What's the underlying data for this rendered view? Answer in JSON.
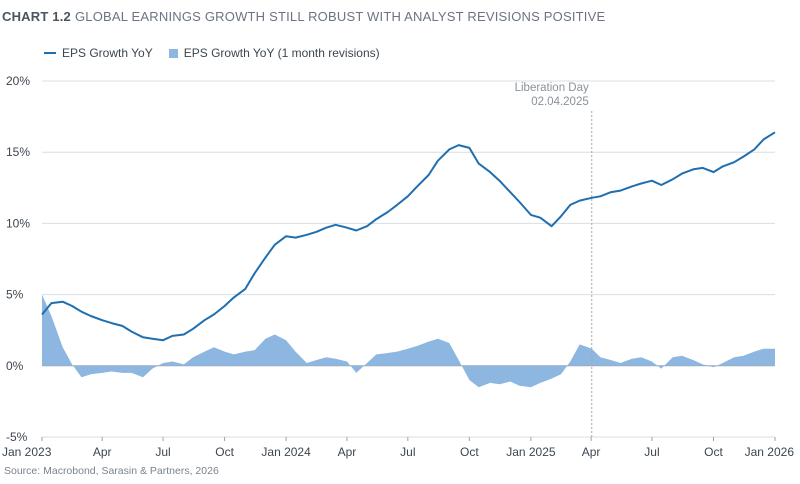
{
  "header": {
    "chart_number": "CHART 1.2",
    "title": "GLOBAL EARNINGS GROWTH STILL ROBUST WITH ANALYST REVISIONS POSITIVE"
  },
  "footer": {
    "source": "Source: Macrobond, Sarasin & Partners, 2026"
  },
  "colors": {
    "line": "#1f6fb0",
    "area": "#8db6e0",
    "grid": "#d9dde2",
    "axis": "#9aa2aa",
    "annotation_line": "#a0a8b0"
  },
  "chart_data": {
    "type": "line",
    "title": "GLOBAL EARNINGS GROWTH STILL ROBUST WITH ANALYST REVISIONS POSITIVE",
    "x_tick_labels": [
      "Jan 2023",
      "Apr",
      "Jul",
      "Oct",
      "Jan 2024",
      "Apr",
      "Jul",
      "Oct",
      "Jan 2025",
      "Apr",
      "Jul",
      "Oct",
      "Jan 2026"
    ],
    "y_tick_labels": [
      "20%",
      "15%",
      "10%",
      "5%",
      "0%",
      "-5%"
    ],
    "y_ticks": [
      20,
      15,
      10,
      5,
      0,
      -5
    ],
    "ylim": [
      -5,
      20
    ],
    "xlim": [
      "2023-01-01",
      "2026-01-01"
    ],
    "grid": "horizontal",
    "legend": "top-left",
    "annotation": {
      "date": "2025-04-02",
      "line1": "Liberation Day",
      "line2": "02.04.2025"
    },
    "series": [
      {
        "name": "EPS Growth YoY",
        "type": "line",
        "points": [
          [
            "2023-01-01",
            3.6
          ],
          [
            "2023-01-15",
            4.4
          ],
          [
            "2023-02-01",
            4.5
          ],
          [
            "2023-02-15",
            4.2
          ],
          [
            "2023-03-01",
            3.8
          ],
          [
            "2023-03-15",
            3.5
          ],
          [
            "2023-04-01",
            3.2
          ],
          [
            "2023-04-15",
            3.0
          ],
          [
            "2023-05-01",
            2.8
          ],
          [
            "2023-05-15",
            2.4
          ],
          [
            "2023-06-01",
            2.0
          ],
          [
            "2023-06-15",
            1.9
          ],
          [
            "2023-07-01",
            1.8
          ],
          [
            "2023-07-15",
            2.1
          ],
          [
            "2023-08-01",
            2.2
          ],
          [
            "2023-08-15",
            2.6
          ],
          [
            "2023-09-01",
            3.2
          ],
          [
            "2023-09-15",
            3.6
          ],
          [
            "2023-10-01",
            4.2
          ],
          [
            "2023-10-15",
            4.8
          ],
          [
            "2023-11-01",
            5.4
          ],
          [
            "2023-11-15",
            6.5
          ],
          [
            "2023-12-01",
            7.6
          ],
          [
            "2023-12-15",
            8.5
          ],
          [
            "2024-01-01",
            9.1
          ],
          [
            "2024-01-15",
            9.0
          ],
          [
            "2024-02-01",
            9.2
          ],
          [
            "2024-02-15",
            9.4
          ],
          [
            "2024-03-01",
            9.7
          ],
          [
            "2024-03-15",
            9.9
          ],
          [
            "2024-04-01",
            9.7
          ],
          [
            "2024-04-15",
            9.5
          ],
          [
            "2024-05-01",
            9.8
          ],
          [
            "2024-05-15",
            10.3
          ],
          [
            "2024-06-01",
            10.8
          ],
          [
            "2024-06-15",
            11.3
          ],
          [
            "2024-07-01",
            11.9
          ],
          [
            "2024-07-15",
            12.6
          ],
          [
            "2024-08-01",
            13.4
          ],
          [
            "2024-08-15",
            14.4
          ],
          [
            "2024-09-01",
            15.2
          ],
          [
            "2024-09-15",
            15.5
          ],
          [
            "2024-10-01",
            15.3
          ],
          [
            "2024-10-15",
            14.2
          ],
          [
            "2024-11-01",
            13.6
          ],
          [
            "2024-11-15",
            13.0
          ],
          [
            "2024-12-01",
            12.2
          ],
          [
            "2024-12-15",
            11.5
          ],
          [
            "2025-01-01",
            10.6
          ],
          [
            "2025-01-15",
            10.4
          ],
          [
            "2025-02-01",
            9.8
          ],
          [
            "2025-02-15",
            10.5
          ],
          [
            "2025-03-01",
            11.3
          ],
          [
            "2025-03-15",
            11.6
          ],
          [
            "2025-04-02",
            11.8
          ],
          [
            "2025-04-15",
            11.9
          ],
          [
            "2025-05-01",
            12.2
          ],
          [
            "2025-05-15",
            12.3
          ],
          [
            "2025-06-01",
            12.6
          ],
          [
            "2025-06-15",
            12.8
          ],
          [
            "2025-07-01",
            13.0
          ],
          [
            "2025-07-15",
            12.7
          ],
          [
            "2025-08-01",
            13.1
          ],
          [
            "2025-08-15",
            13.5
          ],
          [
            "2025-09-01",
            13.8
          ],
          [
            "2025-09-15",
            13.9
          ],
          [
            "2025-10-01",
            13.6
          ],
          [
            "2025-10-15",
            14.0
          ],
          [
            "2025-11-01",
            14.3
          ],
          [
            "2025-11-15",
            14.7
          ],
          [
            "2025-12-01",
            15.2
          ],
          [
            "2025-12-15",
            15.9
          ],
          [
            "2026-01-01",
            16.4
          ]
        ]
      },
      {
        "name": "EPS Growth YoY (1 month revisions)",
        "type": "area",
        "points": [
          [
            "2023-01-01",
            5.0
          ],
          [
            "2023-01-15",
            3.5
          ],
          [
            "2023-02-01",
            1.3
          ],
          [
            "2023-02-15",
            0.1
          ],
          [
            "2023-03-01",
            -0.8
          ],
          [
            "2023-03-15",
            -0.6
          ],
          [
            "2023-04-01",
            -0.5
          ],
          [
            "2023-04-15",
            -0.4
          ],
          [
            "2023-05-01",
            -0.5
          ],
          [
            "2023-05-15",
            -0.5
          ],
          [
            "2023-06-01",
            -0.8
          ],
          [
            "2023-06-15",
            -0.2
          ],
          [
            "2023-07-01",
            0.2
          ],
          [
            "2023-07-15",
            0.3
          ],
          [
            "2023-08-01",
            0.1
          ],
          [
            "2023-08-15",
            0.6
          ],
          [
            "2023-09-01",
            1.0
          ],
          [
            "2023-09-15",
            1.3
          ],
          [
            "2023-10-01",
            1.0
          ],
          [
            "2023-10-15",
            0.8
          ],
          [
            "2023-11-01",
            1.0
          ],
          [
            "2023-11-15",
            1.1
          ],
          [
            "2023-12-01",
            1.9
          ],
          [
            "2023-12-15",
            2.2
          ],
          [
            "2024-01-01",
            1.8
          ],
          [
            "2024-01-15",
            1.0
          ],
          [
            "2024-02-01",
            0.2
          ],
          [
            "2024-02-15",
            0.4
          ],
          [
            "2024-03-01",
            0.6
          ],
          [
            "2024-03-15",
            0.5
          ],
          [
            "2024-04-01",
            0.3
          ],
          [
            "2024-04-15",
            -0.5
          ],
          [
            "2024-05-01",
            0.2
          ],
          [
            "2024-05-15",
            0.8
          ],
          [
            "2024-06-01",
            0.9
          ],
          [
            "2024-06-15",
            1.0
          ],
          [
            "2024-07-01",
            1.2
          ],
          [
            "2024-07-15",
            1.4
          ],
          [
            "2024-08-01",
            1.7
          ],
          [
            "2024-08-15",
            1.9
          ],
          [
            "2024-09-01",
            1.6
          ],
          [
            "2024-09-15",
            0.4
          ],
          [
            "2024-10-01",
            -1.0
          ],
          [
            "2024-10-15",
            -1.5
          ],
          [
            "2024-11-01",
            -1.2
          ],
          [
            "2024-11-15",
            -1.3
          ],
          [
            "2024-12-01",
            -1.1
          ],
          [
            "2024-12-15",
            -1.4
          ],
          [
            "2025-01-01",
            -1.5
          ],
          [
            "2025-01-15",
            -1.2
          ],
          [
            "2025-02-01",
            -0.9
          ],
          [
            "2025-02-15",
            -0.6
          ],
          [
            "2025-03-01",
            0.3
          ],
          [
            "2025-03-15",
            1.5
          ],
          [
            "2025-04-02",
            1.2
          ],
          [
            "2025-04-15",
            0.6
          ],
          [
            "2025-05-01",
            0.4
          ],
          [
            "2025-05-15",
            0.2
          ],
          [
            "2025-06-01",
            0.5
          ],
          [
            "2025-06-15",
            0.6
          ],
          [
            "2025-07-01",
            0.3
          ],
          [
            "2025-07-15",
            -0.2
          ],
          [
            "2025-08-01",
            0.6
          ],
          [
            "2025-08-15",
            0.7
          ],
          [
            "2025-09-01",
            0.4
          ],
          [
            "2025-09-15",
            0.1
          ],
          [
            "2025-10-01",
            -0.1
          ],
          [
            "2025-10-15",
            0.2
          ],
          [
            "2025-11-01",
            0.6
          ],
          [
            "2025-11-15",
            0.7
          ],
          [
            "2025-12-01",
            1.0
          ],
          [
            "2025-12-15",
            1.2
          ],
          [
            "2026-01-01",
            1.2
          ]
        ]
      }
    ]
  }
}
